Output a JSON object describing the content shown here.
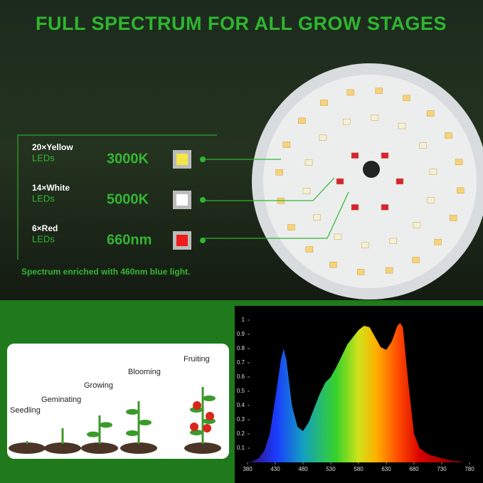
{
  "header": {
    "title": "FULL SPECTRUM FOR ALL GROW STAGES"
  },
  "leds": [
    {
      "count": "20×Yellow",
      "unit": "LEDs",
      "value": "3000K",
      "color": "#f3e64a"
    },
    {
      "count": "14×White",
      "unit": "LEDs",
      "value": "5000K",
      "color": "#ffffff"
    },
    {
      "count": "6×Red",
      "unit": "LEDs",
      "value": "660nm",
      "color": "#ee1c1c"
    }
  ],
  "note": "Spectrum enriched with 460nm blue light.",
  "stages": [
    "Seedling",
    "Geminating",
    "Growing",
    "Blooming",
    "Fruiting"
  ],
  "spectrum": {
    "type": "area",
    "x": [
      380,
      390,
      400,
      410,
      420,
      430,
      440,
      445,
      450,
      460,
      470,
      480,
      490,
      500,
      510,
      520,
      530,
      540,
      550,
      560,
      570,
      580,
      590,
      600,
      610,
      620,
      630,
      640,
      650,
      655,
      660,
      670,
      680,
      690,
      700,
      710,
      720,
      730,
      740,
      750,
      760,
      770,
      780
    ],
    "values": [
      0,
      0.01,
      0.03,
      0.08,
      0.2,
      0.45,
      0.72,
      0.8,
      0.72,
      0.4,
      0.25,
      0.22,
      0.28,
      0.38,
      0.48,
      0.56,
      0.6,
      0.67,
      0.75,
      0.83,
      0.88,
      0.93,
      0.96,
      0.95,
      0.88,
      0.81,
      0.79,
      0.85,
      0.96,
      0.98,
      0.95,
      0.55,
      0.2,
      0.1,
      0.07,
      0.05,
      0.04,
      0.03,
      0.02,
      0.01,
      0.01,
      0,
      0
    ],
    "xlim": [
      380,
      780
    ],
    "ylim": [
      0,
      1
    ],
    "xticks": [
      380,
      430,
      480,
      530,
      580,
      630,
      680,
      730,
      780
    ],
    "yticks": [
      0.1,
      0.2,
      0.3,
      0.4,
      0.5,
      0.6,
      0.7,
      0.8,
      0.9,
      1
    ]
  }
}
